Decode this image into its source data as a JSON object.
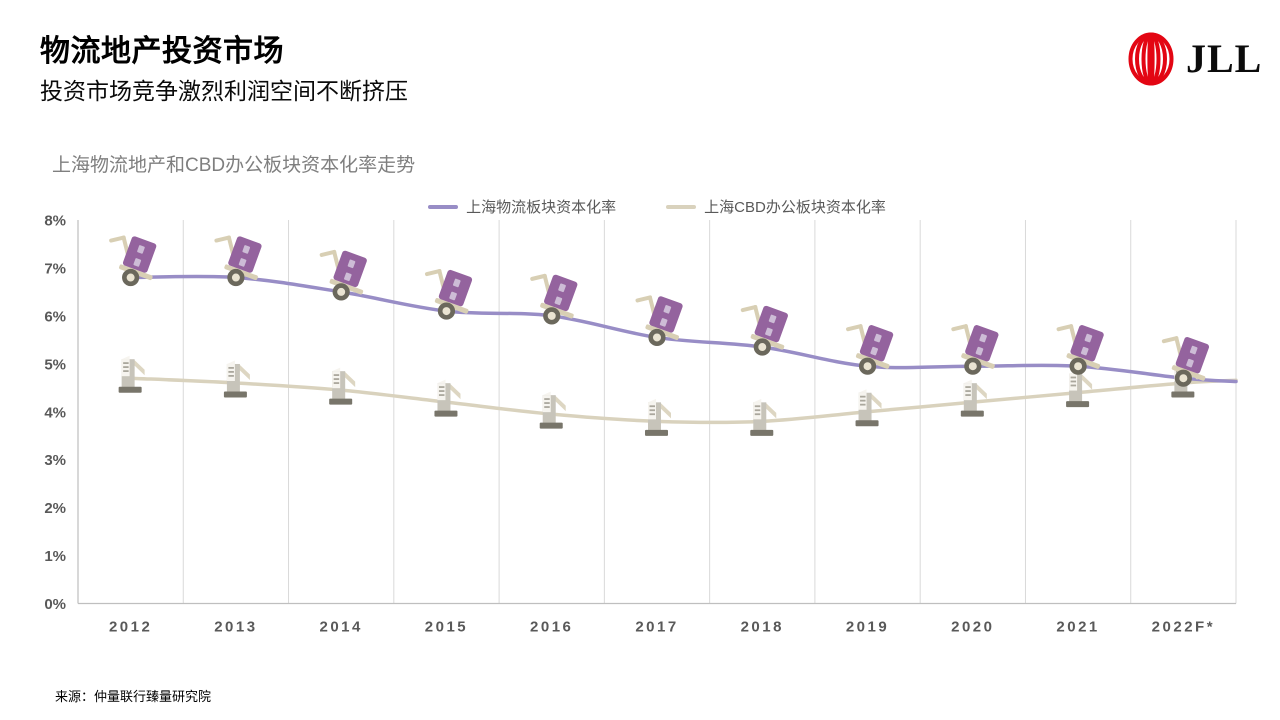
{
  "slide": {
    "title": "物流地产投资市场",
    "subtitle": "投资市场竞争激烈利润空间不断挤压",
    "source": "来源：仲量联行臻量研究院"
  },
  "logo": {
    "text": "JLL",
    "brand_red": "#e30613"
  },
  "chart_data": {
    "type": "line",
    "title": "上海物流地产和CBD办公板块资本化率走势",
    "categories": [
      "2012",
      "2013",
      "2014",
      "2015",
      "2016",
      "2017",
      "2018",
      "2019",
      "2020",
      "2021",
      "2022F*"
    ],
    "series": [
      {
        "name": "上海物流板块资本化率",
        "color": "#988dc6",
        "marker": "handtruck",
        "values": [
          6.8,
          6.8,
          6.5,
          6.1,
          6.0,
          5.55,
          5.35,
          4.95,
          4.95,
          4.95,
          4.7
        ]
      },
      {
        "name": "上海CBD办公板块资本化率",
        "color": "#d9d2bd",
        "marker": "building",
        "values": [
          4.7,
          4.6,
          4.45,
          4.2,
          3.95,
          3.8,
          3.8,
          4.0,
          4.2,
          4.4,
          4.6
        ]
      }
    ],
    "ylim": [
      0,
      8
    ],
    "ytick_step": 1,
    "ytick_suffix": "%",
    "grid": "vertical-only",
    "legend_position": "top",
    "line_smoothing": true
  }
}
